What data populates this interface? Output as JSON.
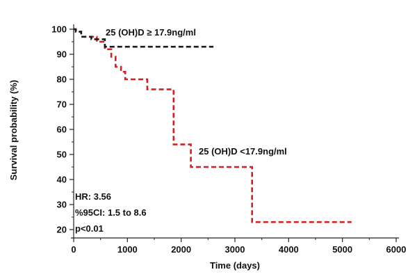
{
  "chart_data": {
    "type": "line",
    "step": true,
    "xlabel": "Time (days)",
    "ylabel": "Survival probability (%)",
    "xlim": [
      0,
      6000
    ],
    "ylim": [
      20,
      100
    ],
    "xticks": [
      "0",
      "1000",
      "2000",
      "3000",
      "4000",
      "5000",
      "6000"
    ],
    "yticks": [
      "20",
      "30",
      "40",
      "50",
      "60",
      "70",
      "80",
      "90",
      "100"
    ],
    "series": [
      {
        "name": "25 (OH)D ≥ 17.9ng/ml",
        "color": "#1a1a1a",
        "dash": true,
        "x": [
          0,
          40,
          140,
          330,
          580,
          2600
        ],
        "y": [
          100,
          99,
          97,
          96,
          93,
          93
        ]
      },
      {
        "name": "25 (OH)D <17.9ng/ml",
        "color": "#d42020",
        "dash": true,
        "x": [
          0,
          40,
          140,
          430,
          580,
          700,
          780,
          880,
          960,
          1370,
          1820,
          1860,
          2180,
          3320,
          5170
        ],
        "y": [
          100,
          99,
          97,
          95,
          92,
          89,
          85,
          83,
          80,
          76,
          76,
          54,
          45,
          23,
          23
        ]
      }
    ],
    "annotations": {
      "hr": "HR: 3.56",
      "ci": "%95CI: 1.5 to 8.6",
      "p": "p<0.01"
    }
  }
}
